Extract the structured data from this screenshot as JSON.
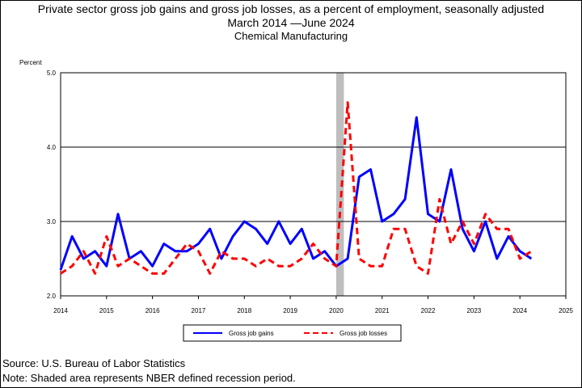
{
  "chart_data": {
    "type": "line",
    "title": "Private sector gross job gains and gross job losses, as a percent of employment, seasonally adjusted",
    "subtitle": "March 2014 —June 2024",
    "subtitle2": "Chemical Manufacturing",
    "ylabel": "Percent",
    "xlabel": "",
    "ylim": [
      2.0,
      5.0
    ],
    "xlim": [
      2014,
      2025
    ],
    "yticks": [
      "2.0",
      "3.0",
      "4.0",
      "5.0"
    ],
    "xticks": [
      "2014",
      "2015",
      "2016",
      "2017",
      "2018",
      "2019",
      "2020",
      "2021",
      "2022",
      "2023",
      "2024",
      "2025"
    ],
    "grid": "horizontal",
    "legend_position": "bottom",
    "recession_shading": {
      "start": 2020.0,
      "end": 2020.167
    },
    "series": [
      {
        "name": "Gross job gains",
        "color": "#0000ff",
        "dash": "solid",
        "x": [
          2014.0,
          2014.25,
          2014.5,
          2014.75,
          2015.0,
          2015.25,
          2015.5,
          2015.75,
          2016.0,
          2016.25,
          2016.5,
          2016.75,
          2017.0,
          2017.25,
          2017.5,
          2017.75,
          2018.0,
          2018.25,
          2018.5,
          2018.75,
          2019.0,
          2019.25,
          2019.5,
          2019.75,
          2020.0,
          2020.25,
          2020.5,
          2020.75,
          2021.0,
          2021.25,
          2021.5,
          2021.75,
          2022.0,
          2022.25,
          2022.5,
          2022.75,
          2023.0,
          2023.25,
          2023.5,
          2023.75,
          2024.0,
          2024.25
        ],
        "values": [
          2.35,
          2.8,
          2.5,
          2.6,
          2.4,
          3.1,
          2.5,
          2.6,
          2.4,
          2.7,
          2.6,
          2.6,
          2.7,
          2.9,
          2.5,
          2.8,
          3.0,
          2.9,
          2.7,
          3.0,
          2.7,
          2.9,
          2.5,
          2.6,
          2.4,
          2.5,
          3.6,
          3.7,
          3.0,
          3.1,
          3.3,
          4.4,
          3.1,
          3.0,
          3.7,
          2.9,
          2.6,
          3.0,
          2.5,
          2.8,
          2.6,
          2.5
        ]
      },
      {
        "name": "Gross job losses",
        "color": "#ff0000",
        "dash": "dashed",
        "x": [
          2014.0,
          2014.25,
          2014.5,
          2014.75,
          2015.0,
          2015.25,
          2015.5,
          2015.75,
          2016.0,
          2016.25,
          2016.5,
          2016.75,
          2017.0,
          2017.25,
          2017.5,
          2017.75,
          2018.0,
          2018.25,
          2018.5,
          2018.75,
          2019.0,
          2019.25,
          2019.5,
          2019.75,
          2020.0,
          2020.25,
          2020.5,
          2020.75,
          2021.0,
          2021.25,
          2021.5,
          2021.75,
          2022.0,
          2022.25,
          2022.5,
          2022.75,
          2023.0,
          2023.25,
          2023.5,
          2023.75,
          2024.0,
          2024.25
        ],
        "values": [
          2.3,
          2.4,
          2.6,
          2.3,
          2.8,
          2.4,
          2.5,
          2.4,
          2.3,
          2.3,
          2.5,
          2.7,
          2.6,
          2.3,
          2.6,
          2.5,
          2.5,
          2.4,
          2.5,
          2.4,
          2.4,
          2.5,
          2.7,
          2.5,
          2.4,
          4.6,
          2.5,
          2.4,
          2.4,
          2.9,
          2.9,
          2.4,
          2.3,
          3.3,
          2.7,
          3.0,
          2.7,
          3.1,
          2.9,
          2.9,
          2.5,
          2.6
        ]
      }
    ]
  },
  "footer": {
    "source": "Source: U.S. Bureau of Labor Statistics",
    "note": "Note: Shaded area represents NBER defined recession period."
  }
}
